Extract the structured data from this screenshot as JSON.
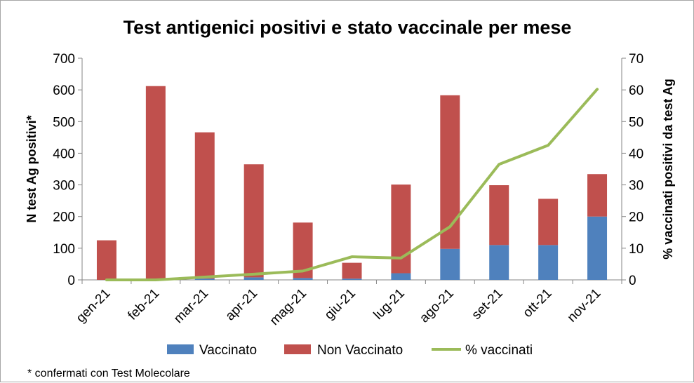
{
  "chart_data": {
    "type": "bar",
    "stacked": true,
    "title": "Test antigenici positivi e stato vaccinale per mese",
    "categories": [
      "gen-21",
      "feb-21",
      "mar-21",
      "apr-21",
      "mag-21",
      "giu-21",
      "lug-21",
      "ago-21",
      "set-21",
      "ott-21",
      "nov-21"
    ],
    "series": [
      {
        "name": "Vaccinato",
        "kind": "bar",
        "axis": "left",
        "color": "#4f81bd",
        "values": [
          0,
          0,
          4,
          8,
          6,
          4,
          21,
          98,
          110,
          110,
          200
        ]
      },
      {
        "name": "Non Vaccinato",
        "kind": "bar",
        "axis": "left",
        "color": "#c0504d",
        "values": [
          125,
          612,
          462,
          357,
          175,
          50,
          280,
          485,
          189,
          146,
          134
        ]
      },
      {
        "name": "% vaccinati",
        "kind": "line",
        "axis": "right",
        "color": "#9bbb59",
        "values": [
          0,
          0,
          0.9,
          1.8,
          2.8,
          7.3,
          6.9,
          16.8,
          36.5,
          42.5,
          60.2
        ]
      }
    ],
    "ylabel": "N test Ag positivi*",
    "ylabel_right": "% vaccinati positivi da test Ag",
    "ylim": [
      0,
      700
    ],
    "yticks": [
      "0",
      "100",
      "200",
      "300",
      "400",
      "500",
      "600",
      "700"
    ],
    "ylim_right": [
      0,
      70
    ],
    "yticks_right": [
      "0",
      "10",
      "20",
      "30",
      "40",
      "50",
      "60",
      "70"
    ],
    "grid": false,
    "legend_position": "bottom",
    "footnote": "* confermati con Test Molecolare"
  }
}
